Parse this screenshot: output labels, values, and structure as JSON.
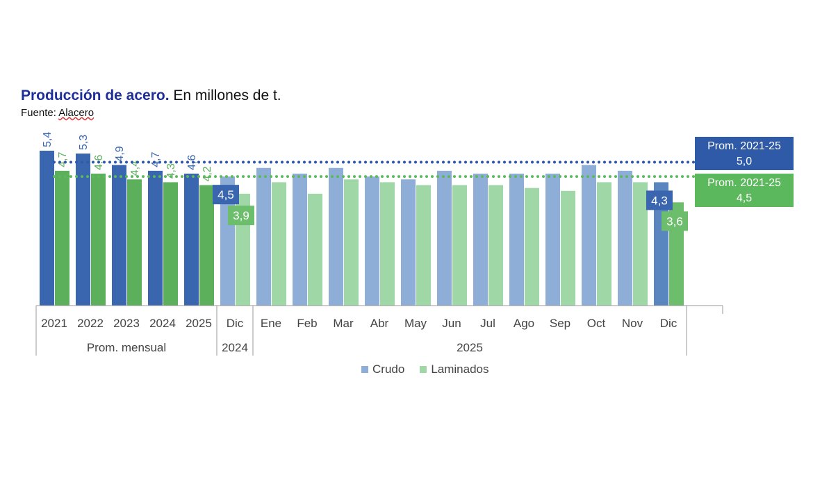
{
  "title_bold": "Producción de acero.",
  "title_rest": " En millones de t.",
  "source_label": "Fuente: ",
  "source_name": "Alacero",
  "colors": {
    "crudo_dark": "#3a66b0",
    "lam_dark": "#5cb05c",
    "crudo_light": "#8eaed8",
    "lam_light": "#9fd8a6",
    "crudo_mid": "#5a86c0",
    "lam_mid": "#6cbd6c",
    "avg_blue": "#2f5aa8",
    "avg_green": "#5cb85c"
  },
  "chart_data": {
    "type": "bar",
    "categories": [
      "2021",
      "2022",
      "2023",
      "2024",
      "2025",
      "Dic",
      "Ene",
      "Feb",
      "Mar",
      "Abr",
      "May",
      "Jun",
      "Jul",
      "Ago",
      "Sep",
      "Oct",
      "Nov",
      "Dic"
    ],
    "groups": [
      {
        "label": "Prom. mensual",
        "span": 5
      },
      {
        "label": "2024",
        "span": 1
      },
      {
        "label": "2025",
        "span": 12
      }
    ],
    "series": [
      {
        "name": "Crudo",
        "values": [
          5.4,
          5.3,
          4.9,
          4.7,
          4.6,
          4.5,
          4.8,
          4.6,
          4.8,
          4.5,
          4.4,
          4.7,
          4.6,
          4.6,
          4.6,
          4.9,
          4.7,
          4.3
        ]
      },
      {
        "name": "Laminados",
        "values": [
          4.7,
          4.6,
          4.4,
          4.3,
          4.2,
          3.9,
          4.3,
          3.9,
          4.4,
          4.3,
          4.2,
          4.2,
          4.2,
          4.1,
          4.0,
          4.3,
          4.3,
          3.6
        ]
      }
    ],
    "data_labels": {
      "crudo": [
        "5,4",
        "5,3",
        "4,9",
        "4,7",
        "4,6",
        "4,5",
        null,
        null,
        null,
        null,
        null,
        null,
        null,
        null,
        null,
        null,
        null,
        "4,3"
      ],
      "laminados": [
        "4,7",
        "4,6",
        "4,4",
        "4,3",
        "4,2",
        "3,9",
        null,
        null,
        null,
        null,
        null,
        null,
        null,
        null,
        null,
        null,
        null,
        "3,6"
      ]
    },
    "reference_lines": [
      {
        "name": "Prom. 2021-25",
        "series": "Crudo",
        "value": 5.0,
        "label": "5,0"
      },
      {
        "name": "Prom. 2021-25",
        "series": "Laminados",
        "value": 4.5,
        "label": "4,5"
      }
    ],
    "ylim": [
      0,
      5.5
    ],
    "legend": [
      "Crudo",
      "Laminados"
    ],
    "legend_position": "bottom"
  }
}
